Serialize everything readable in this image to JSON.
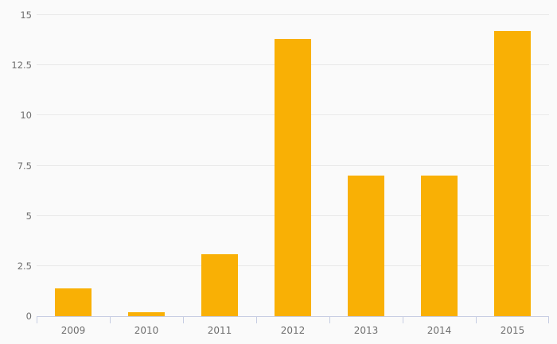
{
  "chart_data": {
    "type": "bar",
    "title": "",
    "xlabel": "",
    "ylabel": "",
    "categories": [
      "2009",
      "2010",
      "2011",
      "2012",
      "2013",
      "2014",
      "2015"
    ],
    "values": [
      1.4,
      0.2,
      3.1,
      13.8,
      7,
      7,
      14.2
    ],
    "ylim": [
      0,
      15
    ],
    "yticks": [
      0,
      2.5,
      5,
      7.5,
      10,
      12.5,
      15
    ],
    "grid": true,
    "legend": false,
    "bar_width_fraction": 0.5,
    "colors": {
      "bar": "#f9b005",
      "background": "#fafafa",
      "gridline": "#e9e9e9",
      "axis": "#c6cde2",
      "label": "#6e6e6e"
    }
  }
}
